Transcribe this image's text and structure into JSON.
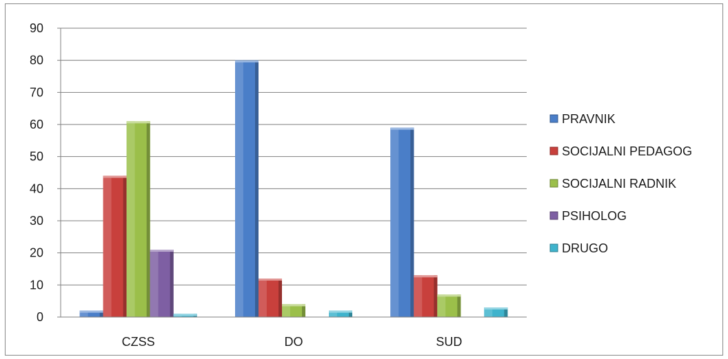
{
  "chart_data": {
    "type": "bar",
    "categories": [
      "CZSS",
      "DO",
      "SUD"
    ],
    "series": [
      {
        "name": "PRAVNIK",
        "values": [
          2,
          80,
          59
        ],
        "color": "#4a7ec8"
      },
      {
        "name": "SOCIJALNI PEDAGOG",
        "values": [
          44,
          12,
          13
        ],
        "color": "#c8403c"
      },
      {
        "name": "SOCIJALNI RADNIK",
        "values": [
          61,
          4,
          7
        ],
        "color": "#9bbf4a"
      },
      {
        "name": "PSIHOLOG",
        "values": [
          21,
          0,
          0
        ],
        "color": "#7e5fa3"
      },
      {
        "name": "DRUGO",
        "values": [
          1,
          2,
          3
        ],
        "color": "#3fb3cc"
      }
    ],
    "ylim": [
      0,
      90
    ],
    "yticks": [
      0,
      10,
      20,
      30,
      40,
      50,
      60,
      70,
      80,
      90
    ],
    "grid": true,
    "legend": "right",
    "title": "",
    "xlabel": "",
    "ylabel": ""
  }
}
